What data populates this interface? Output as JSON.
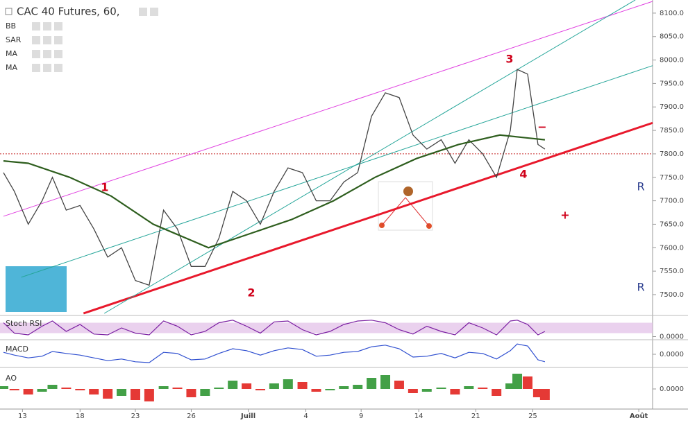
{
  "chart_data": {
    "type": "line",
    "title": "CAC 40 Futures, 60,",
    "legend_items": [
      "BB",
      "SAR",
      "MA",
      "MA"
    ],
    "xlim": [
      -0.39,
      10.94
    ],
    "xticks": [
      {
        "value": 0,
        "label": "13"
      },
      {
        "value": 1.0,
        "label": "18"
      },
      {
        "value": 1.96,
        "label": "23"
      },
      {
        "value": 2.93,
        "label": "26"
      },
      {
        "value": 3.92,
        "label": "Juill"
      },
      {
        "value": 4.92,
        "label": "4"
      },
      {
        "value": 5.88,
        "label": "9"
      },
      {
        "value": 6.88,
        "label": "14"
      },
      {
        "value": 7.87,
        "label": "21"
      },
      {
        "value": 8.86,
        "label": "25"
      },
      {
        "value": 10.7,
        "label": "Août"
      }
    ],
    "ylim": [
      7460,
      8130
    ],
    "yticks": [
      {
        "value": 7500,
        "label": "7500.0"
      },
      {
        "value": 7550,
        "label": "7550.0"
      },
      {
        "value": 7600,
        "label": "7600.0"
      },
      {
        "value": 7650,
        "label": "7650.0"
      },
      {
        "value": 7700,
        "label": "7700.0"
      },
      {
        "value": 7750,
        "label": "7750.0"
      },
      {
        "value": 7800,
        "label": "7800.0"
      },
      {
        "value": 7850,
        "label": "7850.0"
      },
      {
        "value": 7900,
        "label": "7900.0"
      },
      {
        "value": 7950,
        "label": "7950.0"
      },
      {
        "value": 8000,
        "label": "8000.0"
      },
      {
        "value": 8050,
        "label": "8050.0"
      },
      {
        "value": 8100,
        "label": "8100.0"
      }
    ],
    "hline": 7800,
    "series": [
      {
        "color": "#444444",
        "x": [
          -0.33,
          -0.14,
          0.1,
          0.34,
          0.52,
          0.76,
          1.0,
          1.24,
          1.48,
          1.72,
          1.96,
          2.2,
          2.45,
          2.69,
          2.93,
          3.17,
          3.41,
          3.65,
          3.89,
          4.13,
          4.37,
          4.61,
          4.86,
          5.1,
          5.34,
          5.58,
          5.82,
          6.06,
          6.3,
          6.54,
          6.78,
          7.02,
          7.27,
          7.51,
          7.75,
          7.99,
          8.23,
          8.47,
          8.59,
          8.77,
          8.95,
          9.07
        ],
        "values": [
          7760,
          7720,
          7650,
          7700,
          7750,
          7680,
          7690,
          7640,
          7580,
          7600,
          7530,
          7520,
          7680,
          7640,
          7560,
          7560,
          7620,
          7720,
          7700,
          7650,
          7720,
          7770,
          7760,
          7700,
          7700,
          7740,
          7760,
          7880,
          7930,
          7920,
          7840,
          7810,
          7830,
          7780,
          7830,
          7800,
          7750,
          7850,
          7980,
          7970,
          7820,
          7810
        ]
      },
      {
        "color": "#2e5e1e",
        "x": [
          -0.33,
          0.1,
          0.82,
          1.54,
          2.27,
          3.23,
          3.95,
          4.67,
          5.4,
          6.12,
          6.84,
          7.57,
          8.29,
          9.07
        ],
        "values": [
          7785,
          7780,
          7750,
          7710,
          7650,
          7600,
          7630,
          7660,
          7700,
          7750,
          7790,
          7820,
          7840,
          7830
        ]
      }
    ],
    "trendlines": [
      {
        "color": "#e8192c",
        "x": [
          1.06,
          10.94
        ],
        "y": [
          7460,
          7866
        ]
      },
      {
        "color": "#e040e0",
        "x": [
          -0.33,
          10.94
        ],
        "y": [
          7667,
          8125
        ]
      },
      {
        "color": "#26a69a",
        "x": [
          1.42,
          10.64
        ],
        "y": [
          7460,
          8128
        ]
      },
      {
        "color": "#26a69a",
        "x": [
          -0.02,
          10.94
        ],
        "y": [
          7537,
          7988
        ]
      }
    ],
    "annotations": [
      "1",
      "2",
      "3",
      "4",
      "R",
      "R",
      "−",
      "+"
    ],
    "panels": [
      {
        "name": "Stoch RSI",
        "type": "line",
        "color": "#7b1fa2",
        "ylim": [
          -10,
          110
        ],
        "yticks": [
          {
            "value": 0,
            "label": "0.0000"
          }
        ],
        "values": [
          80,
          20,
          10,
          60,
          90,
          30,
          70,
          15,
          10,
          50,
          20,
          10,
          90,
          60,
          10,
          30,
          80,
          95,
          60,
          20,
          85,
          90,
          40,
          10,
          30,
          70,
          90,
          95,
          80,
          40,
          15,
          60,
          30,
          10,
          80,
          50,
          10,
          90,
          95,
          70,
          10,
          30
        ]
      },
      {
        "name": "MACD",
        "type": "line",
        "color": "#3050d0",
        "ylim": [
          -40,
          40
        ],
        "yticks": [
          {
            "value": 0,
            "label": "0.0000"
          }
        ],
        "values": [
          7,
          -3,
          -13,
          -7,
          10,
          3,
          -3,
          -13,
          -23,
          -17,
          -27,
          -30,
          7,
          3,
          -20,
          -17,
          3,
          20,
          13,
          -3,
          13,
          23,
          17,
          -7,
          -3,
          7,
          10,
          27,
          33,
          20,
          -10,
          -7,
          3,
          -13,
          7,
          3,
          -17,
          13,
          37,
          30,
          -20,
          -27
        ]
      },
      {
        "name": "AO",
        "type": "bar",
        "ylim": [
          -120,
          120
        ],
        "yticks": [
          {
            "value": 0,
            "label": "0.0000"
          }
        ],
        "values": [
          20,
          -10,
          -40,
          -20,
          30,
          10,
          -10,
          -40,
          -70,
          -50,
          -80,
          -90,
          20,
          10,
          -60,
          -50,
          10,
          60,
          40,
          -10,
          40,
          70,
          50,
          -20,
          -10,
          20,
          30,
          80,
          100,
          60,
          -30,
          -20,
          10,
          -40,
          20,
          10,
          -50,
          40,
          110,
          90,
          -60,
          -80
        ]
      }
    ]
  }
}
